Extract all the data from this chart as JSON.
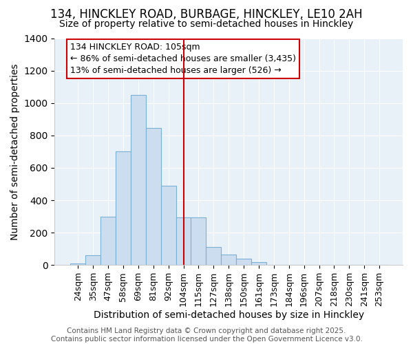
{
  "title1": "134, HINCKLEY ROAD, BURBAGE, HINCKLEY, LE10 2AH",
  "title2": "Size of property relative to semi-detached houses in Hinckley",
  "xlabel": "Distribution of semi-detached houses by size in Hinckley",
  "ylabel": "Number of semi-detached properties",
  "categories": [
    "24sqm",
    "35sqm",
    "47sqm",
    "58sqm",
    "69sqm",
    "81sqm",
    "92sqm",
    "104sqm",
    "115sqm",
    "127sqm",
    "138sqm",
    "150sqm",
    "161sqm",
    "173sqm",
    "184sqm",
    "196sqm",
    "207sqm",
    "218sqm",
    "230sqm",
    "241sqm",
    "253sqm"
  ],
  "values": [
    10,
    60,
    300,
    700,
    1050,
    845,
    490,
    295,
    295,
    110,
    65,
    40,
    20,
    0,
    0,
    0,
    0,
    0,
    0,
    0,
    0
  ],
  "bar_color": "#ccddf0",
  "bar_edge_color": "#7ab0d4",
  "vline_x_index": 7,
  "vline_color": "#cc0000",
  "annotation_text": "134 HINCKLEY ROAD: 105sqm\n← 86% of semi-detached houses are smaller (3,435)\n13% of semi-detached houses are larger (526) →",
  "annotation_box_color": "#ffffff",
  "annotation_box_edge": "#cc0000",
  "ylim": [
    0,
    1400
  ],
  "background_color": "#e8f0f8",
  "grid_color": "#ffffff",
  "footer_text": "Contains HM Land Registry data © Crown copyright and database right 2025.\nContains public sector information licensed under the Open Government Licence v3.0.",
  "title_fontsize": 12,
  "subtitle_fontsize": 10,
  "axis_label_fontsize": 10,
  "tick_fontsize": 9,
  "annotation_fontsize": 9,
  "footer_fontsize": 7.5
}
